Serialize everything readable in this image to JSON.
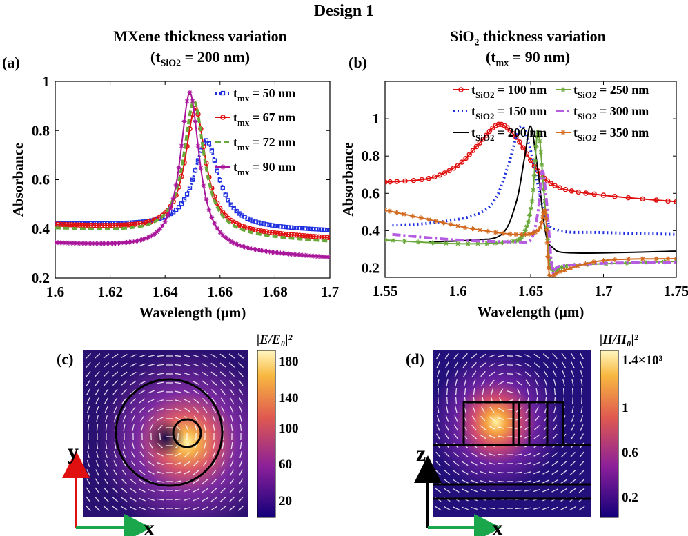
{
  "figure": {
    "main_title": "Design 1",
    "panel_a": {
      "label": "(a)",
      "title_line1": "MXene thickness variation",
      "title_line2_t": "t",
      "title_line2_sub": "SiO2",
      "title_line2_rest": " = 200 nm)"
    },
    "panel_b": {
      "label": "(b)",
      "title_line1_pre": "SiO",
      "title_line1_sub": "2",
      "title_line1_post": " thickness variation",
      "title_line2_t": "t",
      "title_line2_sub": "mx",
      "title_line2_rest": " = 90 nm)"
    },
    "panel_c": {
      "label": "(c)",
      "colorbar_title": "|E/E₀|²",
      "colorbar_ticks": [
        "180",
        "140",
        "100",
        "60",
        "20"
      ],
      "axis_y": "y",
      "axis_x": "x"
    },
    "panel_d": {
      "label": "(d)",
      "colorbar_title": "|H/H₀|²",
      "colorbar_ticks": [
        "1.4×10³",
        "1",
        "0.6",
        "0.2"
      ],
      "axis_z": "z",
      "axis_x": "x"
    }
  },
  "chart_data": [
    {
      "type": "line",
      "id": "a",
      "xlabel": "Wavelength (μm)",
      "ylabel": "Absorbance",
      "xlim": [
        1.6,
        1.7
      ],
      "ylim": [
        0.2,
        1.0
      ],
      "xticks": [
        1.6,
        1.62,
        1.64,
        1.66,
        1.68,
        1.7
      ],
      "xtick_labels": [
        "1.6",
        "1.62",
        "1.64",
        "1.66",
        "1.68",
        "1.7"
      ],
      "yticks": [
        0.2,
        0.4,
        0.6,
        0.8,
        1.0
      ],
      "ytick_labels": [
        "0.2",
        "0.4",
        "0.6",
        "0.8",
        "1"
      ],
      "series": [
        {
          "name": "50 nm",
          "legend_t": "t",
          "legend_sub": "mx",
          "legend_val": " = 50 nm",
          "color": "#1f2fe0",
          "style": "dotted",
          "marker": "square",
          "base": 0.42,
          "base_end": 0.39,
          "peak_x": 1.655,
          "peak_y": 0.76,
          "width": 0.0055
        },
        {
          "name": "67 nm",
          "legend_t": "t",
          "legend_sub": "mx",
          "legend_val": " = 67 nm",
          "color": "#e01010",
          "style": "solid",
          "marker": "circle",
          "base": 0.415,
          "base_end": 0.36,
          "peak_x": 1.651,
          "peak_y": 0.89,
          "width": 0.0045
        },
        {
          "name": "72 nm",
          "legend_t": "t",
          "legend_sub": "mx",
          "legend_val": " = 72 nm",
          "color": "#6aa83a",
          "style": "dashed",
          "marker": "none",
          "base": 0.4,
          "base_end": 0.345,
          "peak_x": 1.6505,
          "peak_y": 0.92,
          "width": 0.0045
        },
        {
          "name": "90 nm",
          "legend_t": "t",
          "legend_sub": "mx",
          "legend_val": " = 90 nm",
          "color": "#a8159a",
          "style": "solid",
          "marker": "star",
          "base": 0.34,
          "base_end": 0.28,
          "peak_x": 1.649,
          "peak_y": 0.955,
          "width": 0.0042
        }
      ]
    },
    {
      "type": "line",
      "id": "b",
      "xlabel": "Wavelength (μm)",
      "ylabel": "Absorbance",
      "xlim": [
        1.55,
        1.75
      ],
      "ylim": [
        0.15,
        1.2
      ],
      "xticks": [
        1.55,
        1.6,
        1.65,
        1.7,
        1.75
      ],
      "xtick_labels": [
        "1.55",
        "1.6",
        "1.65",
        "1.7",
        "1.75"
      ],
      "yticks": [
        0.2,
        0.4,
        0.6,
        0.8,
        1.0
      ],
      "ytick_labels": [
        "0.2",
        "0.4",
        "0.6",
        "0.8",
        "1"
      ],
      "series": [
        {
          "name": "100 nm",
          "legend_t": "t",
          "legend_sub": "SiO2",
          "legend_val": " = 100 nm",
          "color": "#e01010",
          "style": "solid",
          "marker": "circle",
          "points": [
            [
              1.55,
              0.66
            ],
            [
              1.58,
              0.68
            ],
            [
              1.6,
              0.75
            ],
            [
              1.615,
              0.87
            ],
            [
              1.628,
              0.97
            ],
            [
              1.64,
              0.9
            ],
            [
              1.655,
              0.72
            ],
            [
              1.67,
              0.63
            ],
            [
              1.7,
              0.59
            ],
            [
              1.75,
              0.555
            ]
          ]
        },
        {
          "name": "150 nm",
          "legend_t": "t",
          "legend_sub": "SiO2",
          "legend_val": " = 150 nm",
          "color": "#1f2fe0",
          "style": "dotted",
          "marker": "none",
          "points": [
            [
              1.555,
              0.43
            ],
            [
              1.58,
              0.44
            ],
            [
              1.61,
              0.48
            ],
            [
              1.625,
              0.56
            ],
            [
              1.635,
              0.76
            ],
            [
              1.643,
              0.96
            ],
            [
              1.65,
              0.83
            ],
            [
              1.66,
              0.48
            ],
            [
              1.67,
              0.4
            ],
            [
              1.7,
              0.39
            ],
            [
              1.75,
              0.38
            ]
          ]
        },
        {
          "name": "200 nm",
          "legend_t": "t",
          "legend_sub": "SiO2",
          "legend_val": " = 200 nm",
          "color": "#000000",
          "style": "solid",
          "marker": "none",
          "points": [
            [
              1.58,
              0.34
            ],
            [
              1.61,
              0.35
            ],
            [
              1.63,
              0.38
            ],
            [
              1.64,
              0.55
            ],
            [
              1.646,
              0.8
            ],
            [
              1.65,
              0.96
            ],
            [
              1.655,
              0.72
            ],
            [
              1.66,
              0.4
            ],
            [
              1.665,
              0.31
            ],
            [
              1.68,
              0.28
            ],
            [
              1.75,
              0.29
            ]
          ]
        },
        {
          "name": "250 nm",
          "legend_t": "t",
          "legend_sub": "SiO2",
          "legend_val": " = 250 nm",
          "color": "#6aa83a",
          "style": "solid",
          "marker": "star",
          "points": [
            [
              1.55,
              0.35
            ],
            [
              1.6,
              0.33
            ],
            [
              1.635,
              0.34
            ],
            [
              1.645,
              0.38
            ],
            [
              1.651,
              0.56
            ],
            [
              1.655,
              0.93
            ],
            [
              1.659,
              0.62
            ],
            [
              1.663,
              0.25
            ],
            [
              1.667,
              0.19
            ],
            [
              1.68,
              0.215
            ],
            [
              1.75,
              0.235
            ]
          ]
        },
        {
          "name": "300 nm",
          "legend_t": "t",
          "legend_sub": "SiO2",
          "legend_val": " = 300 nm",
          "color": "#b55ce0",
          "style": "dashdot",
          "marker": "none",
          "points": [
            [
              1.555,
              0.38
            ],
            [
              1.6,
              0.35
            ],
            [
              1.64,
              0.34
            ],
            [
              1.65,
              0.35
            ],
            [
              1.655,
              0.5
            ],
            [
              1.658,
              0.72
            ],
            [
              1.661,
              0.55
            ],
            [
              1.665,
              0.19
            ],
            [
              1.67,
              0.21
            ],
            [
              1.7,
              0.225
            ],
            [
              1.75,
              0.23
            ]
          ]
        },
        {
          "name": "350 nm",
          "legend_t": "t",
          "legend_sub": "SiO2",
          "legend_val": " = 350 nm",
          "color": "#d2691e",
          "style": "solid",
          "marker": "star",
          "points": [
            [
              1.55,
              0.51
            ],
            [
              1.58,
              0.46
            ],
            [
              1.61,
              0.41
            ],
            [
              1.64,
              0.38
            ],
            [
              1.655,
              0.4
            ],
            [
              1.66,
              0.5
            ],
            [
              1.663,
              0.16
            ],
            [
              1.67,
              0.18
            ],
            [
              1.7,
              0.24
            ],
            [
              1.75,
              0.25
            ]
          ]
        }
      ]
    }
  ]
}
